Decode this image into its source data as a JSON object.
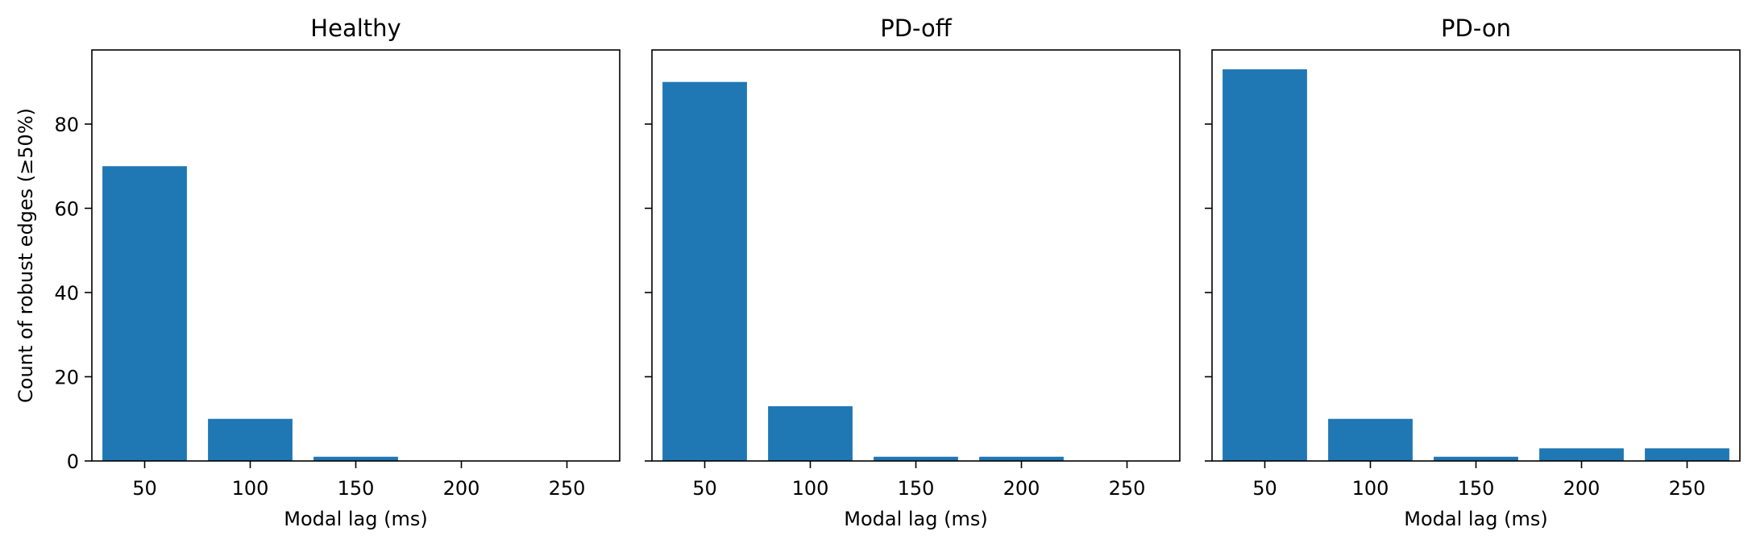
{
  "chart_data": [
    {
      "type": "bar",
      "title": "Healthy",
      "xlabel": "Modal lag (ms)",
      "ylabel": "Count of robust edges (≥50%)",
      "x": [
        50,
        100,
        150,
        200,
        250
      ],
      "values": [
        70,
        10,
        1,
        0,
        0
      ],
      "xticks": [
        50,
        100,
        150,
        200,
        250
      ],
      "yticks": [
        0,
        20,
        40,
        60,
        80
      ],
      "xlim": [
        25,
        275
      ],
      "ylim": [
        0,
        97.6
      ],
      "show_y_tick_labels": true,
      "color": "#1f77b4",
      "grid": false
    },
    {
      "type": "bar",
      "title": "PD-off",
      "xlabel": "Modal lag (ms)",
      "ylabel": "",
      "x": [
        50,
        100,
        150,
        200,
        250
      ],
      "values": [
        90,
        13,
        1,
        1,
        0
      ],
      "xticks": [
        50,
        100,
        150,
        200,
        250
      ],
      "yticks": [
        0,
        20,
        40,
        60,
        80
      ],
      "xlim": [
        25,
        275
      ],
      "ylim": [
        0,
        97.6
      ],
      "show_y_tick_labels": false,
      "color": "#1f77b4",
      "grid": false
    },
    {
      "type": "bar",
      "title": "PD-on",
      "xlabel": "Modal lag (ms)",
      "ylabel": "",
      "x": [
        50,
        100,
        150,
        200,
        250
      ],
      "values": [
        93,
        10,
        1,
        3,
        3
      ],
      "xticks": [
        50,
        100,
        150,
        200,
        250
      ],
      "yticks": [
        0,
        20,
        40,
        60,
        80
      ],
      "xlim": [
        25,
        275
      ],
      "ylim": [
        0,
        97.6
      ],
      "show_y_tick_labels": false,
      "color": "#1f77b4",
      "grid": false
    }
  ]
}
